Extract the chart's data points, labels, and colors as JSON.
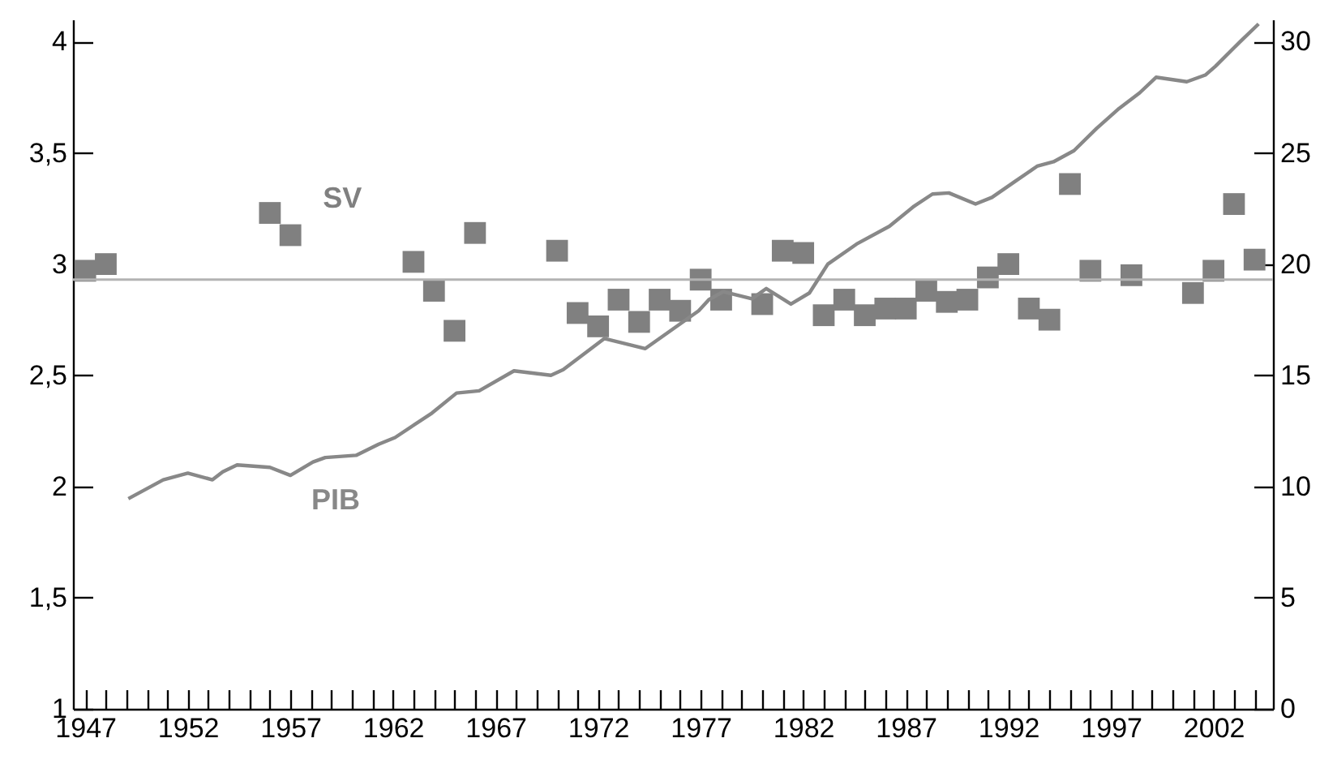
{
  "chart_data": {
    "type": "scatter",
    "xlim": [
      1946.4,
      2004.9
    ],
    "ylim": [
      1,
      4.1
    ],
    "y2lim": [
      0,
      31
    ],
    "xticks": [
      1947,
      {
        "value": 1948,
        "label": null
      },
      {
        "value": 1949,
        "label": null
      },
      {
        "value": 1950,
        "label": null
      },
      {
        "value": 1951,
        "label": null
      },
      1952,
      {
        "value": 1953,
        "label": null
      },
      {
        "value": 1954,
        "label": null
      },
      {
        "value": 1955,
        "label": null
      },
      {
        "value": 1956,
        "label": null
      },
      1957,
      {
        "value": 1958,
        "label": null
      },
      {
        "value": 1959,
        "label": null
      },
      {
        "value": 1960,
        "label": null
      },
      {
        "value": 1961,
        "label": null
      },
      1962,
      {
        "value": 1963,
        "label": null
      },
      {
        "value": 1964,
        "label": null
      },
      {
        "value": 1965,
        "label": null
      },
      {
        "value": 1966,
        "label": null
      },
      1967,
      {
        "value": 1968,
        "label": null
      },
      {
        "value": 1969,
        "label": null
      },
      {
        "value": 1970,
        "label": null
      },
      {
        "value": 1971,
        "label": null
      },
      1972,
      {
        "value": 1973,
        "label": null
      },
      {
        "value": 1974,
        "label": null
      },
      {
        "value": 1975,
        "label": null
      },
      {
        "value": 1976,
        "label": null
      },
      1977,
      {
        "value": 1978,
        "label": null
      },
      {
        "value": 1979,
        "label": null
      },
      {
        "value": 1980,
        "label": null
      },
      {
        "value": 1981,
        "label": null
      },
      1982,
      {
        "value": 1983,
        "label": null
      },
      {
        "value": 1984,
        "label": null
      },
      {
        "value": 1985,
        "label": null
      },
      {
        "value": 1986,
        "label": null
      },
      1987,
      {
        "value": 1988,
        "label": null
      },
      {
        "value": 1989,
        "label": null
      },
      {
        "value": 1990,
        "label": null
      },
      {
        "value": 1991,
        "label": null
      },
      1992,
      {
        "value": 1993,
        "label": null
      },
      {
        "value": 1994,
        "label": null
      },
      {
        "value": 1995,
        "label": null
      },
      {
        "value": 1996,
        "label": null
      },
      1997,
      {
        "value": 1998,
        "label": null
      },
      {
        "value": 1999,
        "label": null
      },
      {
        "value": 2000,
        "label": null
      },
      {
        "value": 2001,
        "label": null
      },
      2002,
      {
        "value": 2003,
        "label": null
      },
      {
        "value": 2004,
        "label": null
      }
    ],
    "yticks": [
      1,
      {
        "value": 1.5,
        "label": "1,5"
      },
      2,
      {
        "value": 2.5,
        "label": "2,5"
      },
      3,
      {
        "value": 3.5,
        "label": "3,5"
      },
      4
    ],
    "y2ticks": [
      0,
      5,
      10,
      15,
      20,
      25,
      30
    ],
    "grid": false,
    "ref_lines": [
      {
        "axis": "y",
        "value": 2.93,
        "color": "#b3b3b3"
      }
    ],
    "series": [
      {
        "name": "SV",
        "marker": "square",
        "color": "#808080",
        "x": [
          1947,
          1948,
          1956,
          1957,
          1963,
          1964,
          1965,
          1966,
          1970,
          1971,
          1972,
          1973,
          1974,
          1975,
          1976,
          1977,
          1978,
          1980,
          1981,
          1982,
          1983,
          1984,
          1985,
          1986,
          1987,
          1988,
          1989,
          1990,
          1991,
          1992,
          1993,
          1994,
          1995,
          1996,
          1998,
          2001,
          2002,
          2003,
          2004
        ],
        "values": [
          2.97,
          3.0,
          3.23,
          3.13,
          3.01,
          2.88,
          2.7,
          3.14,
          3.06,
          2.78,
          2.72,
          2.84,
          2.74,
          2.84,
          2.79,
          2.93,
          2.84,
          2.82,
          3.06,
          3.05,
          2.77,
          2.84,
          2.77,
          2.8,
          2.8,
          2.88,
          2.83,
          2.84,
          2.94,
          3.0,
          2.8,
          2.75,
          3.36,
          2.97,
          2.95,
          2.87,
          2.97,
          3.27,
          3.02
        ]
      },
      {
        "name": "PIB",
        "type": "line",
        "axis": "y2",
        "color": "#888888",
        "x": [
          1949.1,
          1950.8,
          1952.0,
          1953.2,
          1953.7,
          1954.4,
          1956.0,
          1957.0,
          1958.1,
          1958.7,
          1960.2,
          1961.3,
          1962.1,
          1963.9,
          1965.1,
          1966.2,
          1967.9,
          1969.7,
          1970.3,
          1972.3,
          1974.3,
          1976.9,
          1977.4,
          1978.1,
          1979.5,
          1980.2,
          1981.4,
          1982.3,
          1983.2,
          1984.6,
          1986.2,
          1987.4,
          1988.3,
          1989.1,
          1990.4,
          1991.2,
          1992.3,
          1993.4,
          1994.2,
          1995.2,
          1996.3,
          1997.4,
          1998.4,
          1999.2,
          2000.7,
          2001.6,
          2002.1,
          2003.3,
          2004.2
        ],
        "values": [
          9.45,
          10.3,
          10.6,
          10.3,
          10.66,
          10.97,
          10.86,
          10.5,
          11.1,
          11.3,
          11.4,
          11.9,
          12.2,
          13.3,
          14.2,
          14.3,
          15.2,
          15.0,
          15.25,
          16.65,
          16.2,
          17.9,
          18.4,
          18.76,
          18.44,
          18.9,
          18.2,
          18.7,
          20.0,
          20.9,
          21.7,
          22.6,
          23.15,
          23.2,
          22.7,
          23.0,
          23.7,
          24.4,
          24.6,
          25.1,
          26.1,
          27.0,
          27.7,
          28.4,
          28.2,
          28.5,
          28.9,
          30.0,
          30.8
        ]
      }
    ]
  }
}
